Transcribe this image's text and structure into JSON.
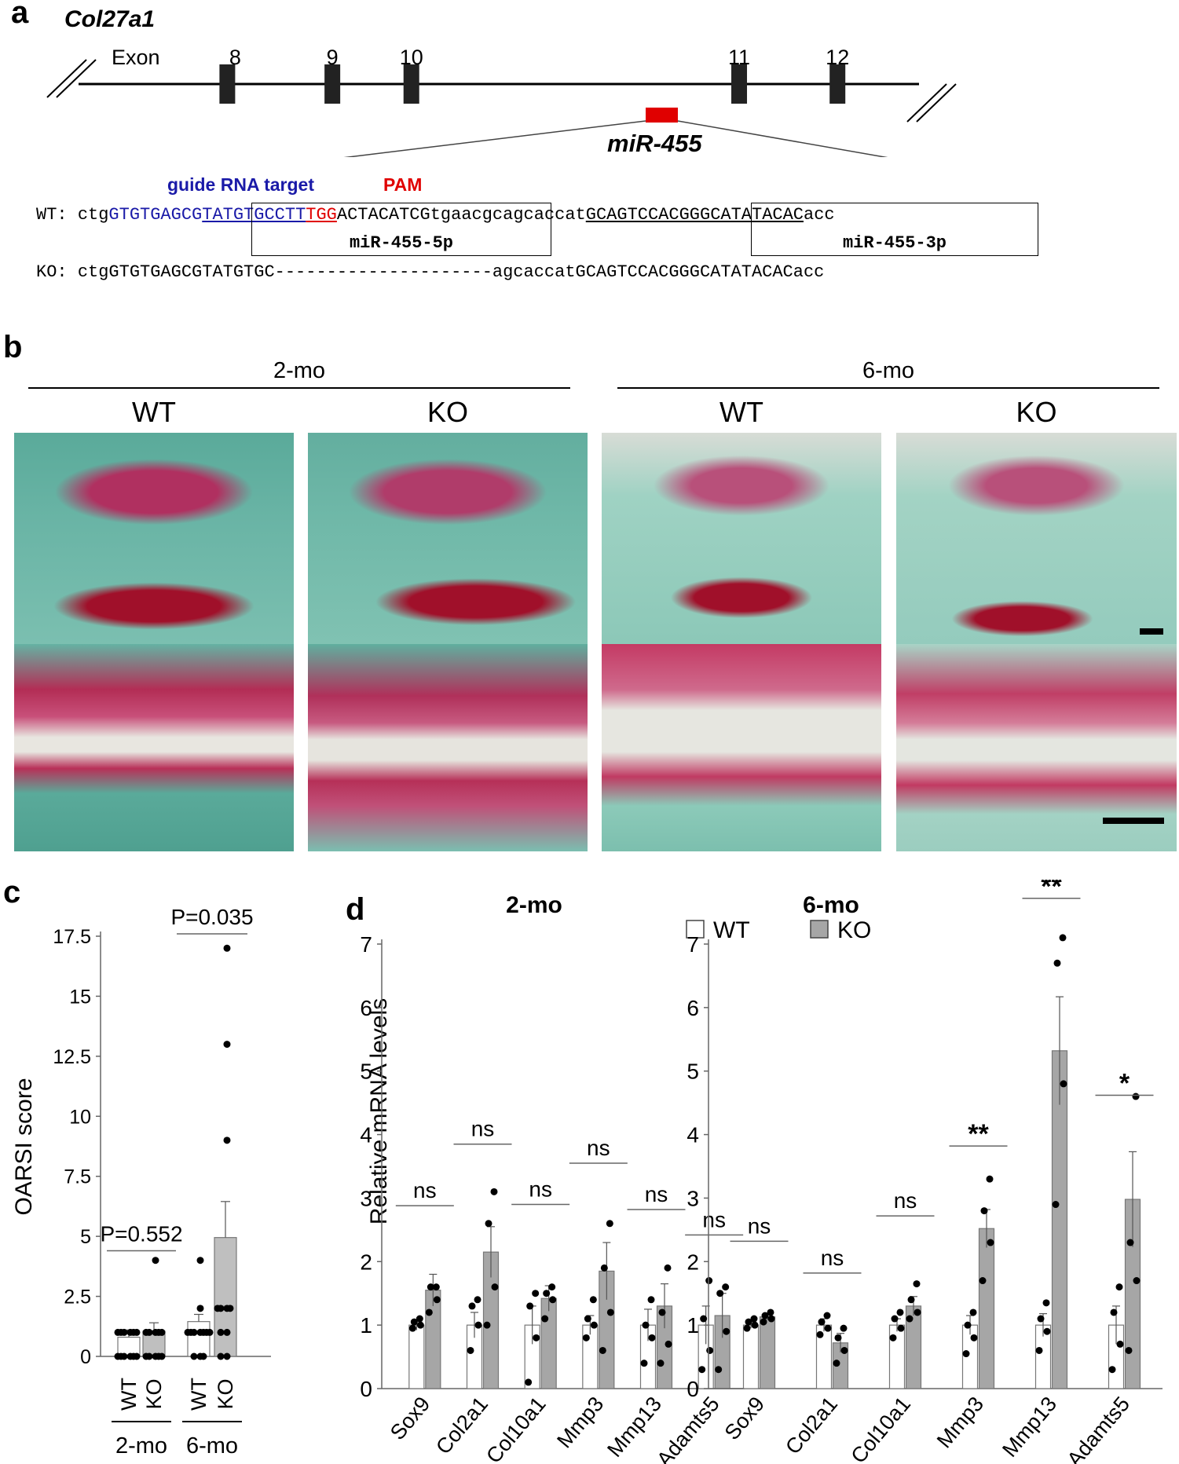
{
  "panel_labels": {
    "a": "a",
    "b": "b",
    "c": "c",
    "d": "d"
  },
  "panel_a": {
    "gene": "Col27a1",
    "exon_prefix": "Exon",
    "exons": [
      {
        "label": "8",
        "bp": 0.177
      },
      {
        "label": "9",
        "bp": 0.302
      },
      {
        "label": "10",
        "bp": 0.396
      },
      {
        "label": "11",
        "bp": 0.786
      },
      {
        "label": "12",
        "bp": 0.903
      }
    ],
    "mirna_locus": "miR-455",
    "guide_label": "guide RNA target",
    "pam_label": "PAM",
    "wt_prefix": "WT: ",
    "ko_prefix": "KO: ",
    "wt_segments": [
      {
        "text": "ctg",
        "style": "plain"
      },
      {
        "text": "GTGTGAGCG",
        "style": "guide"
      },
      {
        "text": "TATGTGCCTT",
        "style": "guide-u"
      },
      {
        "text": "TGG",
        "style": "pam"
      },
      {
        "text": "ACTACATCG",
        "style": "plain"
      },
      {
        "text": "tgaacgcagcaccat",
        "style": "plain"
      },
      {
        "text": "GCAGTCCACGGGCATATACAC",
        "style": "under"
      },
      {
        "text": "acc",
        "style": "plain"
      }
    ],
    "ko_sequence": "ctgGTGTGAGCGTATGTGC---------------------agcaccatGCAGTCCACGGGCATATACACacc",
    "box_5p": "miR-455-5p",
    "box_3p": "miR-455-3p"
  },
  "panel_b": {
    "groups": [
      {
        "label": "2-mo"
      },
      {
        "label": "6-mo"
      }
    ],
    "columns": [
      {
        "label": "WT"
      },
      {
        "label": "KO"
      },
      {
        "label": "WT"
      },
      {
        "label": "KO"
      }
    ]
  },
  "panel_c": {
    "chart_data": {
      "type": "bar",
      "ylabel": "OARSI score",
      "yticks": [
        "0",
        "2.5",
        "5",
        "7.5",
        "10",
        "12.5",
        "15",
        "17.5"
      ],
      "ylim": [
        0,
        17.5
      ],
      "categories": [
        "WT",
        "KO",
        "WT",
        "KO"
      ],
      "groups": [
        "2-mo",
        "6-mo"
      ],
      "values": [
        0.8,
        1.05,
        1.45,
        4.95
      ],
      "errors": [
        0.3,
        0.35,
        0.3,
        1.5
      ],
      "points": [
        [
          0,
          0,
          0,
          0,
          0,
          0,
          1,
          1,
          1,
          1,
          1,
          1
        ],
        [
          0,
          0,
          0,
          0,
          0,
          1,
          1,
          1,
          1,
          1,
          4
        ],
        [
          0,
          0,
          0,
          1,
          1,
          1,
          1,
          1,
          1,
          1,
          2,
          4
        ],
        [
          0,
          0,
          1,
          1,
          2,
          2,
          2,
          2,
          9,
          13,
          17
        ]
      ],
      "annotations": [
        {
          "text": "P=0.552",
          "pair": [
            0,
            1
          ]
        },
        {
          "text": "P=0.035",
          "pair": [
            2,
            3
          ]
        }
      ]
    }
  },
  "panel_d": {
    "legend": [
      {
        "label": "WT",
        "color": "#ffffff"
      },
      {
        "label": "KO",
        "color": "#a6a6a6"
      }
    ],
    "ylabel": "Relative mRNA levels",
    "chart_data": [
      {
        "type": "bar",
        "title": "2-mo",
        "ylim": [
          0,
          7
        ],
        "yticks": [
          "0",
          "1",
          "2",
          "3",
          "4",
          "5",
          "6",
          "7"
        ],
        "categories": [
          "Sox9",
          "Col2a1",
          "Col10a1",
          "Mmp3",
          "Mmp13",
          "Adamts5"
        ],
        "series": [
          {
            "name": "WT",
            "values": [
              1.0,
              1.0,
              1.0,
              1.0,
              1.0,
              1.0
            ],
            "errors": [
              0.08,
              0.2,
              0.3,
              0.15,
              0.25,
              0.3
            ]
          },
          {
            "name": "KO",
            "values": [
              1.55,
              2.15,
              1.42,
              1.85,
              1.3,
              1.15
            ],
            "errors": [
              0.25,
              0.4,
              0.2,
              0.45,
              0.35,
              0.35
            ]
          }
        ],
        "points": [
          [
            [
              0.95,
              1.0,
              1.05,
              1.1
            ],
            [
              1.2,
              1.4,
              1.6,
              1.6
            ]
          ],
          [
            [
              0.6,
              1.0,
              1.3,
              1.4
            ],
            [
              1.0,
              1.6,
              2.6,
              3.1
            ]
          ],
          [
            [
              0.1,
              0.8,
              1.3,
              1.5
            ],
            [
              1.1,
              1.4,
              1.5,
              1.6
            ]
          ],
          [
            [
              0.8,
              1.0,
              1.1,
              1.4
            ],
            [
              0.6,
              1.2,
              1.9,
              2.6
            ]
          ],
          [
            [
              0.4,
              0.8,
              1.0,
              1.4
            ],
            [
              0.4,
              0.7,
              1.2,
              1.9
            ]
          ],
          [
            [
              0.3,
              0.6,
              1.1,
              1.7
            ],
            [
              0.3,
              0.9,
              1.5,
              1.6
            ]
          ]
        ],
        "annotations": [
          "ns",
          "ns",
          "ns",
          "ns",
          "ns",
          "ns"
        ],
        "annotation_y": [
          2.88,
          3.85,
          2.9,
          3.55,
          2.82,
          2.42
        ]
      },
      {
        "type": "bar",
        "title": "6-mo",
        "ylim": [
          0,
          7
        ],
        "yticks": [
          "0",
          "1",
          "2",
          "3",
          "4",
          "5",
          "6",
          "7"
        ],
        "categories": [
          "Sox9",
          "Col2a1",
          "Col10a1",
          "Mmp3",
          "Mmp13",
          "Adamts5"
        ],
        "series": [
          {
            "name": "WT",
            "values": [
              1.0,
              1.0,
              1.0,
              1.0,
              1.0,
              1.0
            ],
            "errors": [
              0.05,
              0.1,
              0.1,
              0.15,
              0.18,
              0.3
            ]
          },
          {
            "name": "KO",
            "values": [
              1.13,
              0.72,
              1.3,
              2.52,
              5.32,
              2.98
            ],
            "errors": [
              0.05,
              0.15,
              0.15,
              0.3,
              0.85,
              0.75
            ]
          }
        ],
        "points": [
          [
            [
              0.95,
              1.0,
              1.05,
              1.1
            ],
            [
              1.05,
              1.1,
              1.15,
              1.2
            ]
          ],
          [
            [
              0.85,
              0.95,
              1.05,
              1.15
            ],
            [
              0.4,
              0.6,
              0.8,
              0.95
            ]
          ],
          [
            [
              0.8,
              0.95,
              1.1,
              1.2
            ],
            [
              1.1,
              1.2,
              1.4,
              1.65
            ]
          ],
          [
            [
              0.55,
              0.8,
              1.0,
              1.2
            ],
            [
              1.7,
              2.3,
              2.8,
              3.3
            ]
          ],
          [
            [
              0.6,
              0.9,
              1.1,
              1.35
            ],
            [
              2.9,
              4.8,
              6.7,
              7.1
            ]
          ],
          [
            [
              0.3,
              0.7,
              1.2,
              1.6
            ],
            [
              0.6,
              1.7,
              2.3,
              4.6
            ]
          ]
        ],
        "annotations": [
          "ns",
          "ns",
          "ns",
          "**",
          "**",
          "*"
        ],
        "annotation_y": [
          2.32,
          1.82,
          2.72,
          3.82,
          7.72,
          4.62
        ]
      }
    ]
  }
}
